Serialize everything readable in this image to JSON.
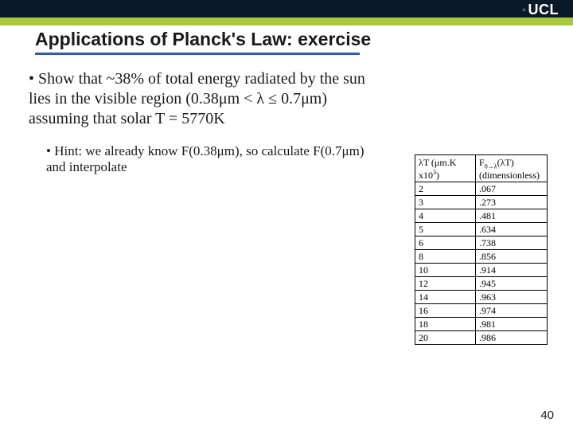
{
  "header": {
    "logo_text": "UCL",
    "logo_mark": "⌂"
  },
  "title": "Applications of Planck's Law: exercise",
  "main_bullet": "• Show that ~38% of total energy radiated by the sun lies in the visible region (0.38μm < λ ≤ 0.7μm) assuming that solar T = 5770K",
  "hint_bullet": "• Hint: we already know F(0.38μm), so calculate F(0.7μm) and interpolate",
  "table": {
    "header_col1_html": "λT (μm.K x10<span class='sup'>3</span>)",
    "header_col2_html": "F<span class='sub'>0→λ</span>(λT) (dimensionless)",
    "rows": [
      [
        "2",
        ".067"
      ],
      [
        "3",
        ".273"
      ],
      [
        "4",
        ".481"
      ],
      [
        "5",
        ".634"
      ],
      [
        "6",
        ".738"
      ],
      [
        "8",
        ".856"
      ],
      [
        "10",
        ".914"
      ],
      [
        "12",
        ".945"
      ],
      [
        "14",
        ".963"
      ],
      [
        "16",
        ".974"
      ],
      [
        "18",
        ".981"
      ],
      [
        "20",
        ".986"
      ]
    ]
  },
  "page_number": "40",
  "colors": {
    "dark_bar": "#0a1827",
    "green_bar": "#a8c93e",
    "underline": "#3259b5",
    "text": "#1a1a1a",
    "background": "#ffffff"
  },
  "typography": {
    "title_fontsize": 23,
    "title_weight": 700,
    "body_fontsize": 20,
    "hint_fontsize": 17,
    "table_fontsize": 12,
    "pagenum_fontsize": 15
  }
}
